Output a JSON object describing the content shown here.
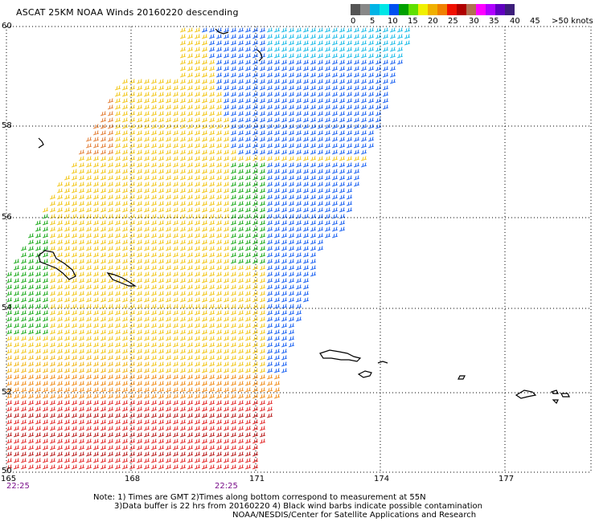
{
  "title": "ASCAT 25KM NOAA Winds 20160220 descending",
  "legend": {
    "unit_label": ">50 knots",
    "labels": [
      "0",
      "5",
      "10",
      "15",
      "20",
      "25",
      "30",
      "35",
      "40",
      "45"
    ],
    "colors": [
      "#555555",
      "#888888",
      "#00b4e6",
      "#00e6e6",
      "#0050f0",
      "#00a000",
      "#60e000",
      "#f0f000",
      "#f0b000",
      "#f08000",
      "#f01000",
      "#b00000",
      "#b07050",
      "#ff00ff",
      "#b000ff",
      "#6000c0",
      "#3c1e7a"
    ]
  },
  "axes": {
    "lon_labels": [
      "165",
      "168",
      "171",
      "174",
      "177"
    ],
    "lat_labels": [
      "60",
      "58",
      "56",
      "54",
      "52",
      "50"
    ],
    "time_labels": [
      "22:25",
      "22:25"
    ]
  },
  "notes": {
    "line1": "Note: 1) Times are GMT 2)Times along bottom correspond to measurement at 55N",
    "line2": "3)Data buffer is 22 hrs from 20160220 4) Black wind barbs indicate possible contamination",
    "line3": "NOAA/NESDIS/Center for Satellite Applications and Research"
  },
  "map_data": {
    "lon_range": [
      165,
      179.3
    ],
    "lat_range": [
      50,
      60
    ],
    "grid": true
  }
}
